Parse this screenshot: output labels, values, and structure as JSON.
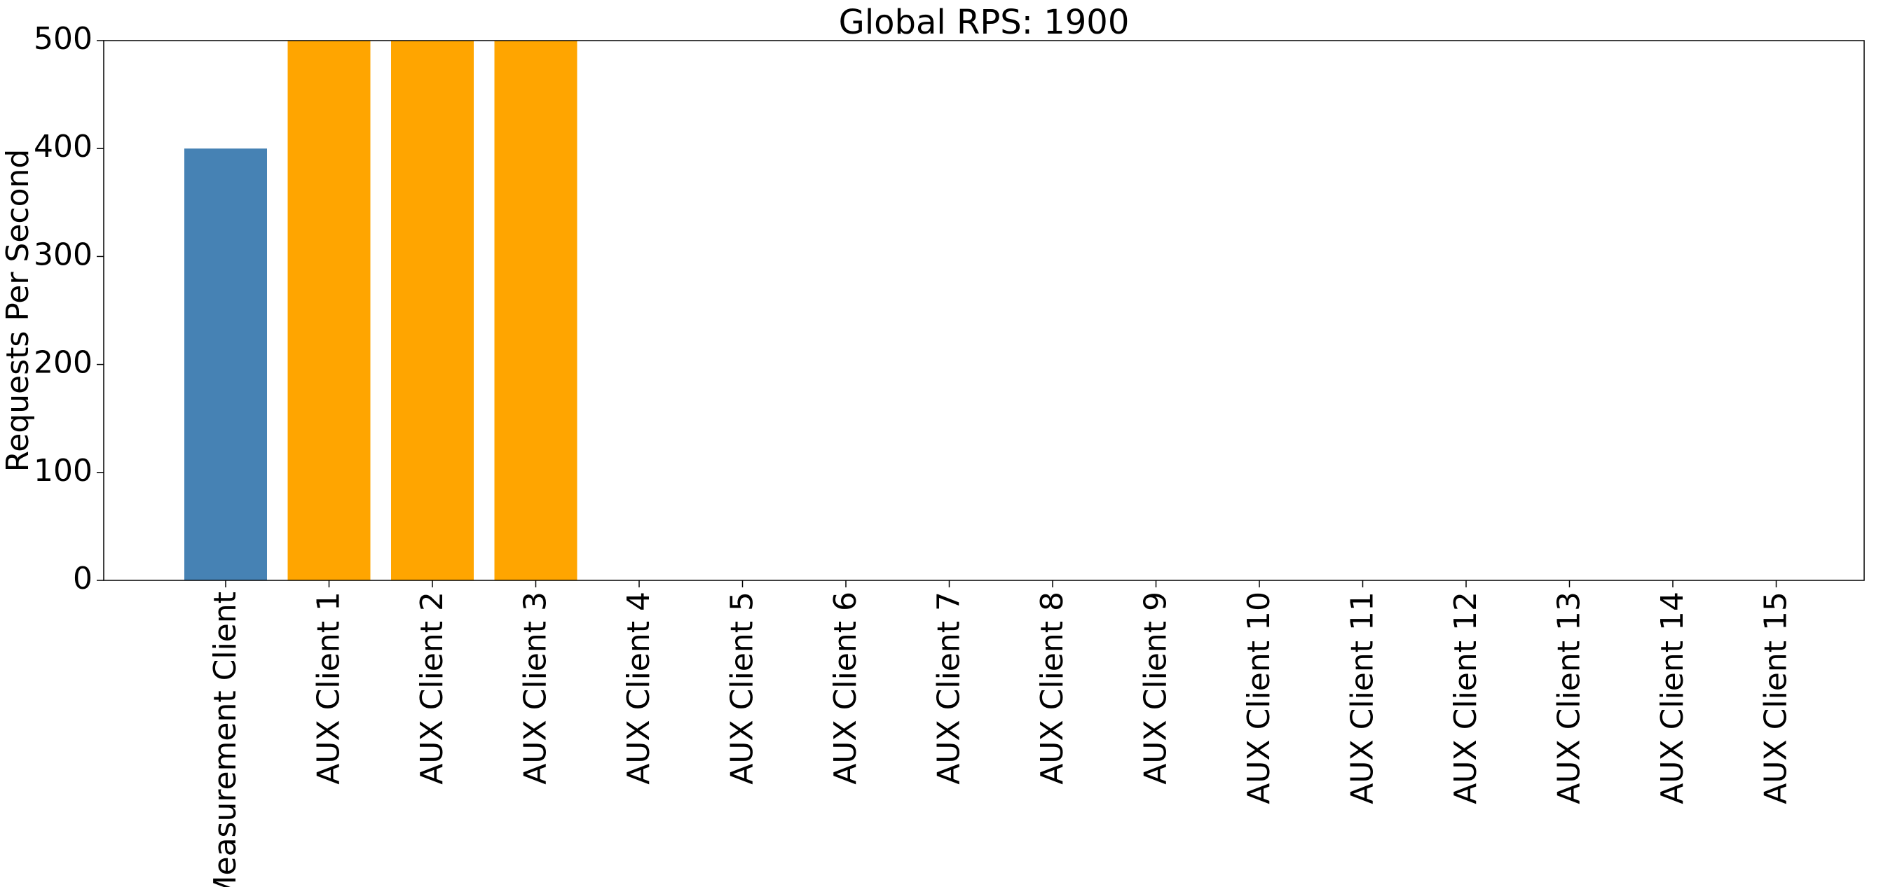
{
  "chart_data": {
    "type": "bar",
    "title": "Global RPS: 1900",
    "xlabel": "",
    "ylabel": "Requests Per Second",
    "categories": [
      "Measurement Client",
      "AUX Client 1",
      "AUX Client 2",
      "AUX Client 3",
      "AUX Client 4",
      "AUX Client 5",
      "AUX Client 6",
      "AUX Client 7",
      "AUX Client 8",
      "AUX Client 9",
      "AUX Client 10",
      "AUX Client 11",
      "AUX Client 12",
      "AUX Client 13",
      "AUX Client 14",
      "AUX Client 15"
    ],
    "values": [
      400,
      500,
      500,
      500,
      0,
      0,
      0,
      0,
      0,
      0,
      0,
      0,
      0,
      0,
      0,
      0
    ],
    "bar_colors": [
      "#4682b4",
      "#ffa500",
      "#ffa500",
      "#ffa500",
      "#ffa500",
      "#ffa500",
      "#ffa500",
      "#ffa500",
      "#ffa500",
      "#ffa500",
      "#ffa500",
      "#ffa500",
      "#ffa500",
      "#ffa500",
      "#ffa500",
      "#ffa500"
    ],
    "ylim": [
      0,
      500
    ],
    "yticks": [
      0,
      100,
      200,
      300,
      400,
      500
    ],
    "ytick_labels": [
      "0",
      "100",
      "200",
      "300",
      "400",
      "500"
    ],
    "grid": false,
    "legend": "none"
  }
}
